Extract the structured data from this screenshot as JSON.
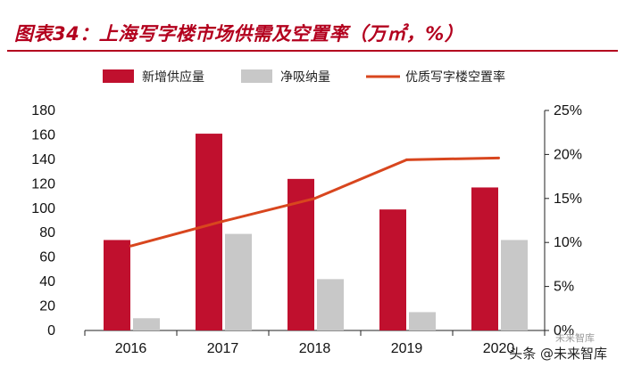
{
  "chart_data": {
    "type": "bar+line",
    "title": "图表34：上海写字楼市场供需及空置率（万㎡，%）",
    "categories": [
      "2016",
      "2017",
      "2018",
      "2019",
      "2020"
    ],
    "series": [
      {
        "name": "新增供应量",
        "type": "bar",
        "axis": "left",
        "color": "#c0102e",
        "values": [
          74,
          161,
          124,
          99,
          117
        ]
      },
      {
        "name": "净吸纳量",
        "type": "bar",
        "axis": "left",
        "color": "#c8c8c8",
        "values": [
          10,
          79,
          42,
          15,
          74
        ]
      },
      {
        "name": "优质写字楼空置率",
        "type": "line",
        "axis": "right",
        "color": "#d8461e",
        "values": [
          9.6,
          12.4,
          15.0,
          19.4,
          19.6
        ]
      }
    ],
    "left_axis": {
      "min": 0,
      "max": 180,
      "step": 20,
      "ticks": [
        "0",
        "20",
        "40",
        "60",
        "80",
        "100",
        "120",
        "140",
        "160",
        "180"
      ]
    },
    "right_axis": {
      "min": 0,
      "max": 25,
      "step": 5,
      "ticks": [
        "0%",
        "5%",
        "10%",
        "15%",
        "20%",
        "25%"
      ]
    },
    "legend_position": "top"
  },
  "watermark": {
    "text": "头条 @未来智库",
    "logo_text": "未来智库"
  }
}
